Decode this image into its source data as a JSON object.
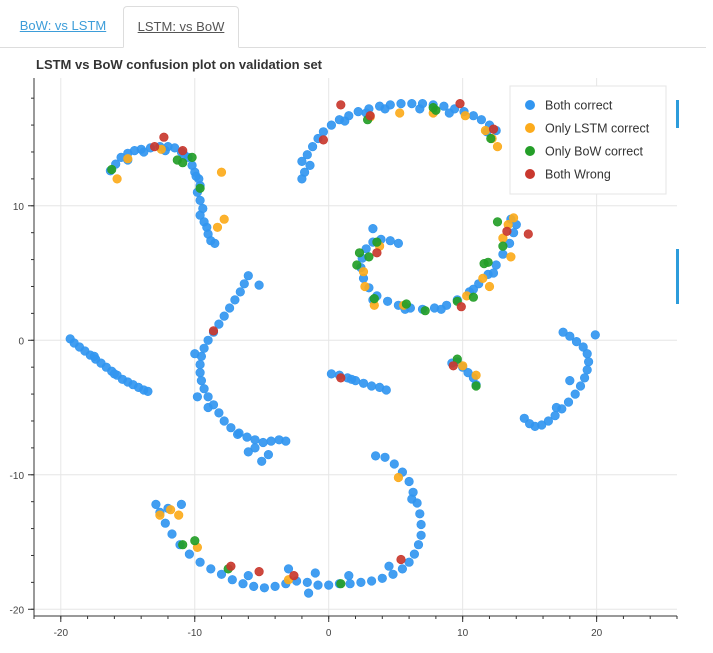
{
  "tabs": [
    {
      "label": "BoW: vs LSTM",
      "active": false
    },
    {
      "label": "LSTM: vs BoW",
      "active": true
    }
  ],
  "chart_data": {
    "type": "scatter",
    "title": "LSTM vs BoW confusion plot on validation set",
    "xlabel": "",
    "ylabel": "",
    "xlim": [
      -22,
      26
    ],
    "ylim": [
      -20.5,
      19.5
    ],
    "xticks": [
      -20,
      -10,
      0,
      10,
      20
    ],
    "yticks": [
      -20,
      -10,
      0,
      10
    ],
    "grid": true,
    "legend_position": "top-right",
    "series": [
      {
        "name": "Both correct",
        "color": "#3296f0",
        "points": [
          [
            -16.3,
            12.6
          ],
          [
            -15.9,
            13.1
          ],
          [
            -15.5,
            13.6
          ],
          [
            -15.0,
            13.9
          ],
          [
            -14.5,
            14.1
          ],
          [
            -14.0,
            14.2
          ],
          [
            -13.3,
            14.3
          ],
          [
            -12.6,
            14.4
          ],
          [
            -12.0,
            14.4
          ],
          [
            -11.5,
            14.3
          ],
          [
            -11.0,
            14.0
          ],
          [
            -10.5,
            13.6
          ],
          [
            -10.2,
            13.0
          ],
          [
            -10.0,
            12.5
          ],
          [
            -9.7,
            12.0
          ],
          [
            -9.6,
            11.5
          ],
          [
            -9.8,
            11.0
          ],
          [
            -9.6,
            10.4
          ],
          [
            -9.4,
            9.8
          ],
          [
            -9.6,
            9.3
          ],
          [
            -9.3,
            8.8
          ],
          [
            -9.1,
            8.4
          ],
          [
            -9.0,
            7.9
          ],
          [
            -8.8,
            7.4
          ],
          [
            -8.5,
            7.2
          ],
          [
            -15.0,
            13.4
          ],
          [
            -13.8,
            14.0
          ],
          [
            -12.2,
            14.1
          ],
          [
            -10.8,
            13.8
          ],
          [
            -9.9,
            12.2
          ],
          [
            -2.0,
            13.3
          ],
          [
            -1.6,
            13.8
          ],
          [
            -1.2,
            14.4
          ],
          [
            -0.8,
            15.0
          ],
          [
            -0.4,
            15.5
          ],
          [
            0.2,
            16.0
          ],
          [
            0.8,
            16.4
          ],
          [
            1.5,
            16.7
          ],
          [
            2.2,
            17.0
          ],
          [
            3.0,
            17.2
          ],
          [
            3.8,
            17.4
          ],
          [
            4.6,
            17.5
          ],
          [
            5.4,
            17.6
          ],
          [
            6.2,
            17.6
          ],
          [
            7.0,
            17.6
          ],
          [
            7.8,
            17.5
          ],
          [
            8.6,
            17.4
          ],
          [
            9.4,
            17.2
          ],
          [
            10.1,
            17.0
          ],
          [
            10.8,
            16.7
          ],
          [
            11.4,
            16.4
          ],
          [
            12.0,
            16.0
          ],
          [
            12.5,
            15.6
          ],
          [
            -1.8,
            12.5
          ],
          [
            -1.4,
            13.0
          ],
          [
            1.2,
            16.3
          ],
          [
            2.8,
            16.9
          ],
          [
            4.2,
            17.2
          ],
          [
            6.8,
            17.2
          ],
          [
            9.0,
            16.9
          ],
          [
            11.8,
            15.5
          ],
          [
            -2.0,
            12.0
          ],
          [
            13.6,
            9.0
          ],
          [
            14.0,
            8.6
          ],
          [
            13.8,
            8.0
          ],
          [
            13.5,
            7.2
          ],
          [
            13.0,
            6.4
          ],
          [
            12.5,
            5.6
          ],
          [
            11.9,
            4.9
          ],
          [
            11.2,
            4.2
          ],
          [
            10.5,
            3.6
          ],
          [
            9.6,
            3.0
          ],
          [
            8.8,
            2.6
          ],
          [
            7.9,
            2.4
          ],
          [
            7.0,
            2.3
          ],
          [
            6.1,
            2.4
          ],
          [
            5.2,
            2.6
          ],
          [
            4.4,
            2.9
          ],
          [
            3.6,
            3.3
          ],
          [
            3.0,
            3.9
          ],
          [
            2.6,
            4.6
          ],
          [
            2.4,
            5.4
          ],
          [
            2.5,
            6.1
          ],
          [
            2.8,
            6.8
          ],
          [
            3.3,
            7.3
          ],
          [
            3.9,
            7.5
          ],
          [
            4.6,
            7.4
          ],
          [
            5.2,
            7.2
          ],
          [
            3.3,
            8.3
          ],
          [
            12.3,
            5.0
          ],
          [
            10.8,
            3.8
          ],
          [
            8.4,
            2.3
          ],
          [
            5.7,
            2.3
          ],
          [
            3.3,
            3.0
          ],
          [
            -19.3,
            0.1
          ],
          [
            -19.0,
            -0.2
          ],
          [
            -18.6,
            -0.5
          ],
          [
            -18.2,
            -0.8
          ],
          [
            -17.8,
            -1.1
          ],
          [
            -17.4,
            -1.4
          ],
          [
            -17.0,
            -1.7
          ],
          [
            -16.6,
            -2.0
          ],
          [
            -16.2,
            -2.3
          ],
          [
            -15.8,
            -2.6
          ],
          [
            -15.4,
            -2.9
          ],
          [
            -15.0,
            -3.1
          ],
          [
            -14.6,
            -3.3
          ],
          [
            -14.2,
            -3.5
          ],
          [
            -13.8,
            -3.7
          ],
          [
            -13.5,
            -3.8
          ],
          [
            -17.5,
            -1.2
          ],
          [
            -16.0,
            -2.5
          ],
          [
            -6.0,
            4.8
          ],
          [
            -6.3,
            4.2
          ],
          [
            -6.6,
            3.6
          ],
          [
            -7.0,
            3.0
          ],
          [
            -7.4,
            2.4
          ],
          [
            -7.8,
            1.8
          ],
          [
            -8.2,
            1.2
          ],
          [
            -8.6,
            0.6
          ],
          [
            -9.0,
            0.0
          ],
          [
            -9.3,
            -0.6
          ],
          [
            -9.5,
            -1.2
          ],
          [
            -9.6,
            -1.8
          ],
          [
            -9.6,
            -2.4
          ],
          [
            -9.5,
            -3.0
          ],
          [
            -9.3,
            -3.6
          ],
          [
            -9.0,
            -4.2
          ],
          [
            -8.6,
            -4.8
          ],
          [
            -8.2,
            -5.4
          ],
          [
            -7.8,
            -6.0
          ],
          [
            -7.3,
            -6.5
          ],
          [
            -6.7,
            -6.9
          ],
          [
            -6.1,
            -7.2
          ],
          [
            -5.5,
            -7.4
          ],
          [
            -4.9,
            -7.6
          ],
          [
            -4.3,
            -7.5
          ],
          [
            -3.7,
            -7.4
          ],
          [
            -3.2,
            -7.5
          ],
          [
            -5.5,
            -8.0
          ],
          [
            -4.5,
            -8.5
          ],
          [
            -5.0,
            -9.0
          ],
          [
            -6.0,
            -8.3
          ],
          [
            -6.8,
            -7.0
          ],
          [
            -9.0,
            -5.0
          ],
          [
            -9.8,
            -4.2
          ],
          [
            -10.0,
            -1.0
          ],
          [
            -5.2,
            4.1
          ],
          [
            0.2,
            -2.5
          ],
          [
            0.8,
            -2.6
          ],
          [
            1.4,
            -2.8
          ],
          [
            2.0,
            -3.0
          ],
          [
            2.6,
            -3.2
          ],
          [
            3.2,
            -3.4
          ],
          [
            3.8,
            -3.5
          ],
          [
            4.3,
            -3.7
          ],
          [
            1.7,
            -2.9
          ],
          [
            9.6,
            -1.6
          ],
          [
            10.0,
            -2.0
          ],
          [
            10.4,
            -2.4
          ],
          [
            10.8,
            -2.8
          ],
          [
            11.0,
            -3.3
          ],
          [
            9.2,
            -1.7
          ],
          [
            17.5,
            0.6
          ],
          [
            18.0,
            0.3
          ],
          [
            18.5,
            -0.1
          ],
          [
            19.0,
            -0.5
          ],
          [
            19.3,
            -1.0
          ],
          [
            19.4,
            -1.6
          ],
          [
            19.3,
            -2.2
          ],
          [
            19.1,
            -2.8
          ],
          [
            18.8,
            -3.4
          ],
          [
            18.4,
            -4.0
          ],
          [
            17.9,
            -4.6
          ],
          [
            17.4,
            -5.1
          ],
          [
            16.9,
            -5.6
          ],
          [
            16.4,
            -6.0
          ],
          [
            15.9,
            -6.3
          ],
          [
            15.4,
            -6.4
          ],
          [
            15.0,
            -6.2
          ],
          [
            14.6,
            -5.8
          ],
          [
            19.9,
            0.4
          ],
          [
            17.0,
            -5.0
          ],
          [
            18.0,
            -3.0
          ],
          [
            3.5,
            -8.6
          ],
          [
            4.2,
            -8.7
          ],
          [
            4.9,
            -9.2
          ],
          [
            5.5,
            -9.8
          ],
          [
            6.0,
            -10.5
          ],
          [
            6.3,
            -11.3
          ],
          [
            6.6,
            -12.1
          ],
          [
            6.8,
            -12.9
          ],
          [
            6.9,
            -13.7
          ],
          [
            6.9,
            -14.5
          ],
          [
            6.7,
            -15.2
          ],
          [
            6.4,
            -15.9
          ],
          [
            6.0,
            -16.5
          ],
          [
            5.5,
            -17.0
          ],
          [
            4.8,
            -17.4
          ],
          [
            4.0,
            -17.7
          ],
          [
            3.2,
            -17.9
          ],
          [
            2.4,
            -18.0
          ],
          [
            1.6,
            -18.1
          ],
          [
            0.8,
            -18.1
          ],
          [
            0.0,
            -18.2
          ],
          [
            -0.8,
            -18.2
          ],
          [
            -1.6,
            -18.0
          ],
          [
            -2.4,
            -17.9
          ],
          [
            -3.2,
            -18.1
          ],
          [
            -4.0,
            -18.3
          ],
          [
            -4.8,
            -18.4
          ],
          [
            -5.6,
            -18.3
          ],
          [
            -6.4,
            -18.1
          ],
          [
            -7.2,
            -17.8
          ],
          [
            -8.0,
            -17.4
          ],
          [
            -8.8,
            -17.0
          ],
          [
            -9.6,
            -16.5
          ],
          [
            -10.4,
            -15.9
          ],
          [
            -11.1,
            -15.2
          ],
          [
            -11.7,
            -14.4
          ],
          [
            -12.2,
            -13.6
          ],
          [
            -12.6,
            -12.8
          ],
          [
            -12.9,
            -12.2
          ],
          [
            -12.0,
            -12.5
          ],
          [
            -11.0,
            -12.2
          ],
          [
            -1.0,
            -17.3
          ],
          [
            1.5,
            -17.5
          ],
          [
            4.5,
            -16.8
          ],
          [
            6.2,
            -11.8
          ],
          [
            -3.0,
            -17.0
          ],
          [
            -6.0,
            -17.5
          ],
          [
            -1.5,
            -18.8
          ]
        ]
      },
      {
        "name": "Only LSTM correct",
        "color": "#fcab1c",
        "points": [
          [
            -15.8,
            12.0
          ],
          [
            -15.0,
            13.5
          ],
          [
            -12.5,
            14.2
          ],
          [
            -8.3,
            8.4
          ],
          [
            -7.8,
            9.0
          ],
          [
            -8.0,
            12.5
          ],
          [
            3.1,
            16.6
          ],
          [
            5.3,
            16.9
          ],
          [
            7.8,
            16.9
          ],
          [
            10.2,
            16.7
          ],
          [
            11.7,
            15.6
          ],
          [
            12.2,
            15.0
          ],
          [
            12.6,
            14.4
          ],
          [
            13.4,
            8.6
          ],
          [
            13.8,
            9.1
          ],
          [
            13.0,
            7.6
          ],
          [
            13.6,
            6.2
          ],
          [
            11.5,
            4.6
          ],
          [
            12.0,
            4.0
          ],
          [
            10.3,
            3.3
          ],
          [
            5.6,
            2.6
          ],
          [
            3.4,
            2.6
          ],
          [
            2.7,
            4.0
          ],
          [
            3.8,
            7.0
          ],
          [
            2.6,
            5.1
          ],
          [
            10.0,
            -1.9
          ],
          [
            11.0,
            -2.6
          ],
          [
            -11.8,
            -12.6
          ],
          [
            -12.6,
            -13.0
          ],
          [
            -11.2,
            -13.0
          ],
          [
            -9.8,
            -15.4
          ],
          [
            5.2,
            -10.2
          ],
          [
            -3.0,
            -17.8
          ]
        ]
      },
      {
        "name": "Only BoW correct",
        "color": "#249e28",
        "points": [
          [
            -16.2,
            12.7
          ],
          [
            -11.3,
            13.4
          ],
          [
            -10.9,
            13.2
          ],
          [
            -9.6,
            11.3
          ],
          [
            -10.2,
            13.6
          ],
          [
            2.9,
            16.4
          ],
          [
            7.8,
            17.3
          ],
          [
            8.0,
            17.1
          ],
          [
            12.1,
            15.0
          ],
          [
            12.6,
            8.8
          ],
          [
            13.0,
            7.0
          ],
          [
            11.9,
            5.8
          ],
          [
            11.6,
            5.7
          ],
          [
            10.8,
            3.2
          ],
          [
            9.6,
            2.9
          ],
          [
            7.2,
            2.2
          ],
          [
            5.8,
            2.7
          ],
          [
            3.4,
            3.1
          ],
          [
            2.1,
            5.6
          ],
          [
            2.3,
            6.5
          ],
          [
            3.6,
            7.3
          ],
          [
            3.0,
            6.2
          ],
          [
            9.6,
            -1.4
          ],
          [
            11.0,
            -3.4
          ],
          [
            -10.0,
            -14.9
          ],
          [
            -10.9,
            -15.2
          ],
          [
            0.9,
            -18.1
          ],
          [
            -7.5,
            -17.0
          ]
        ]
      },
      {
        "name": "Both Wrong",
        "color": "#c9382e",
        "points": [
          [
            -12.3,
            15.1
          ],
          [
            -13.0,
            14.4
          ],
          [
            -10.9,
            14.1
          ],
          [
            0.9,
            17.5
          ],
          [
            9.8,
            17.6
          ],
          [
            3.1,
            16.7
          ],
          [
            -0.4,
            14.9
          ],
          [
            12.3,
            15.7
          ],
          [
            14.9,
            7.9
          ],
          [
            13.3,
            8.1
          ],
          [
            3.6,
            6.5
          ],
          [
            9.9,
            2.5
          ],
          [
            -8.6,
            0.7
          ],
          [
            0.9,
            -2.8
          ],
          [
            9.3,
            -1.9
          ],
          [
            5.4,
            -16.3
          ],
          [
            -2.6,
            -17.5
          ],
          [
            -7.3,
            -16.8
          ],
          [
            -5.2,
            -17.2
          ]
        ]
      }
    ]
  }
}
